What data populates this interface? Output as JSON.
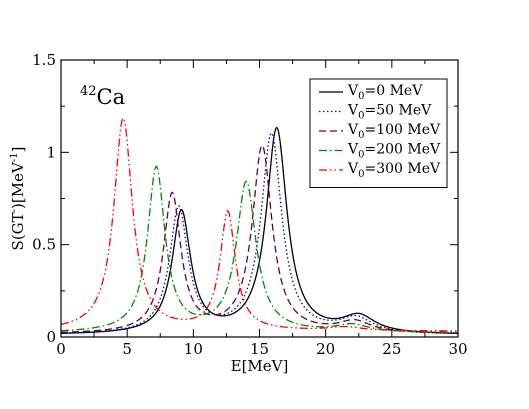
{
  "chart_data": {
    "type": "line",
    "annotation": {
      "sup": "42",
      "text": "Ca"
    },
    "xlabel": "E[MeV]",
    "ylabel": {
      "base": "S(GT",
      "sup1": "-",
      "mid": ")[MeV",
      "sup2": "-1",
      "end": "]"
    },
    "xlim": [
      0,
      30
    ],
    "ylim": [
      0,
      1.5
    ],
    "xticks": [
      0,
      5,
      10,
      15,
      20,
      25,
      30
    ],
    "yticks": [
      0,
      0.5,
      1,
      1.5
    ],
    "xtick_labels": [
      "0",
      "5",
      "10",
      "15",
      "20",
      "25",
      "30"
    ],
    "ytick_labels": [
      "0",
      "0.5",
      "1",
      "1.5"
    ],
    "grid": false,
    "legend_position": "top-right",
    "series": [
      {
        "name": "V0=0 MeV",
        "legend": {
          "base": "V",
          "sub": "0",
          "rest": "=0 MeV"
        },
        "color": "#000000",
        "dash": "",
        "peaks": [
          {
            "x": 9.1,
            "h": 0.66,
            "w": 0.85
          },
          {
            "x": 16.3,
            "h": 1.11,
            "w": 0.95
          },
          {
            "x": 22.5,
            "h": 0.09,
            "w": 1.5
          }
        ],
        "base": 0.01
      },
      {
        "name": "V0=50 MeV",
        "legend": {
          "base": "V",
          "sub": "0",
          "rest": "=50 MeV"
        },
        "color": "#0000cc",
        "dash": "1.5,2.5",
        "peaks": [
          {
            "x": 8.9,
            "h": 0.68,
            "w": 0.85
          },
          {
            "x": 15.9,
            "h": 1.08,
            "w": 0.95
          },
          {
            "x": 22.3,
            "h": 0.08,
            "w": 1.5
          }
        ],
        "base": 0.01
      },
      {
        "name": "V0=100 MeV",
        "legend": {
          "base": "V",
          "sub": "0",
          "rest": "=100 MeV"
        },
        "color": "#660033",
        "dash": "7,4",
        "peaks": [
          {
            "x": 8.4,
            "h": 0.75,
            "w": 0.8
          },
          {
            "x": 15.2,
            "h": 1.01,
            "w": 0.9
          },
          {
            "x": 22.2,
            "h": 0.06,
            "w": 1.5
          }
        ],
        "base": 0.015
      },
      {
        "name": "V0=200 MeV",
        "legend": {
          "base": "V",
          "sub": "0",
          "rest": "=200 MeV"
        },
        "color": "#008800",
        "dash": "8,3,1.5,3",
        "peaks": [
          {
            "x": 7.2,
            "h": 0.89,
            "w": 0.8
          },
          {
            "x": 14.0,
            "h": 0.81,
            "w": 0.9
          },
          {
            "x": 22.0,
            "h": 0.04,
            "w": 1.5
          }
        ],
        "base": 0.02
      },
      {
        "name": "V0=300 MeV",
        "legend": {
          "base": "V",
          "sub": "0",
          "rest": "=300 MeV"
        },
        "color": "#ff0000",
        "dash": "8,3,1.5,3,1.5,3",
        "peaks": [
          {
            "x": 4.7,
            "h": 1.15,
            "w": 0.85
          },
          {
            "x": 12.6,
            "h": 0.64,
            "w": 0.7
          },
          {
            "x": 21.5,
            "h": 0.02,
            "w": 1.5
          }
        ],
        "base": 0.03
      }
    ]
  }
}
